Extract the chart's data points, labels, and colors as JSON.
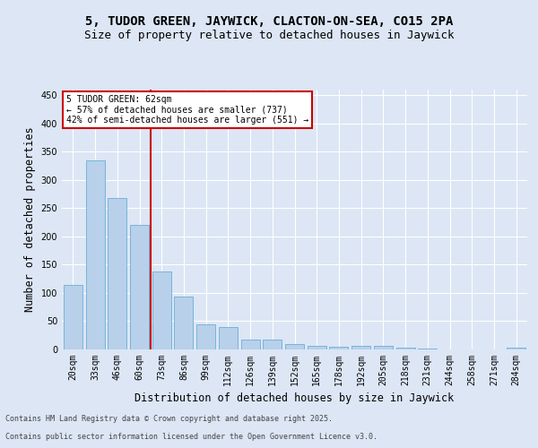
{
  "title1": "5, TUDOR GREEN, JAYWICK, CLACTON-ON-SEA, CO15 2PA",
  "title2": "Size of property relative to detached houses in Jaywick",
  "xlabel": "Distribution of detached houses by size in Jaywick",
  "ylabel": "Number of detached properties",
  "categories": [
    "20sqm",
    "33sqm",
    "46sqm",
    "60sqm",
    "73sqm",
    "86sqm",
    "99sqm",
    "112sqm",
    "126sqm",
    "139sqm",
    "152sqm",
    "165sqm",
    "178sqm",
    "192sqm",
    "205sqm",
    "218sqm",
    "231sqm",
    "244sqm",
    "258sqm",
    "271sqm",
    "284sqm"
  ],
  "values": [
    115,
    335,
    268,
    220,
    138,
    94,
    45,
    40,
    17,
    17,
    10,
    6,
    5,
    6,
    7,
    3,
    1,
    0,
    0,
    0,
    3
  ],
  "bar_color": "#b8d0ea",
  "bar_edge_color": "#6aaed6",
  "vline_x": 3.5,
  "vline_label": "5 TUDOR GREEN: 62sqm",
  "pct_smaller": "57% of detached houses are smaller (737)",
  "pct_larger": "42% of semi-detached houses are larger (551)",
  "annotation_box_color": "#ffffff",
  "annotation_box_edge": "#cc0000",
  "vline_color": "#cc0000",
  "ylim": [
    0,
    460
  ],
  "yticks": [
    0,
    50,
    100,
    150,
    200,
    250,
    300,
    350,
    400,
    450
  ],
  "footer1": "Contains HM Land Registry data © Crown copyright and database right 2025.",
  "footer2": "Contains public sector information licensed under the Open Government Licence v3.0.",
  "bg_color": "#dce6f5",
  "plot_bg_color": "#dce6f5",
  "title1_fontsize": 10,
  "title2_fontsize": 9,
  "tick_fontsize": 7,
  "label_fontsize": 8.5,
  "footer_fontsize": 6
}
